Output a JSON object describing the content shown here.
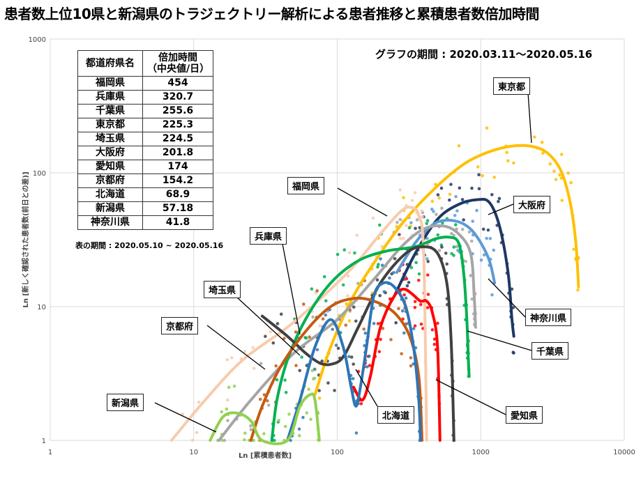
{
  "title": "患者数上位10県と新潟県のトラジェクトリー解析による患者推移と累積患者数倍加時間",
  "period_note": "グラフの期間 : 2020.03.11〜2020.05.16",
  "table": {
    "headers": [
      "都道府県名",
      "倍加時間\n（中央値/日）"
    ],
    "rows": [
      [
        "福岡県",
        "454"
      ],
      [
        "兵庫県",
        "320.7"
      ],
      [
        "千葉県",
        "255.6"
      ],
      [
        "東京都",
        "225.3"
      ],
      [
        "埼玉県",
        "224.5"
      ],
      [
        "大阪府",
        "201.8"
      ],
      [
        "愛知県",
        "174"
      ],
      [
        "京都府",
        "154.2"
      ],
      [
        "北海道",
        "68.9"
      ],
      [
        "新潟県",
        "57.18"
      ],
      [
        "神奈川県",
        "41.8"
      ]
    ],
    "caption": "表の期間 : 2020.05.10 ~ 2020.05.16"
  },
  "chart_data": {
    "type": "line",
    "xlabel": "Ln [累積患者数]",
    "ylabel": "Ln [新しく確認された患者数(前日との差)]",
    "x_scale": "log",
    "y_scale": "log",
    "xlim": [
      1,
      10000
    ],
    "ylim": [
      1,
      1000
    ],
    "x_ticks": [
      "1",
      "10",
      "100",
      "1000",
      "10000"
    ],
    "y_ticks": [
      "1",
      "10",
      "100",
      "1000"
    ],
    "grid": true,
    "series": [
      {
        "name": "東京都",
        "color": "#FFC000",
        "points": [
          [
            70,
            2.2
          ],
          [
            90,
            5
          ],
          [
            130,
            12
          ],
          [
            200,
            25
          ],
          [
            300,
            45
          ],
          [
            500,
            80
          ],
          [
            800,
            120
          ],
          [
            1300,
            150
          ],
          [
            2000,
            160
          ],
          [
            2800,
            145
          ],
          [
            3600,
            105
          ],
          [
            4200,
            60
          ],
          [
            4600,
            30
          ],
          [
            4800,
            14
          ]
        ]
      },
      {
        "name": "大阪府",
        "color": "#1F3864",
        "points": [
          [
            250,
            12
          ],
          [
            350,
            25
          ],
          [
            500,
            45
          ],
          [
            700,
            58
          ],
          [
            950,
            63
          ],
          [
            1150,
            60
          ],
          [
            1350,
            40
          ],
          [
            1550,
            18
          ],
          [
            1650,
            8
          ],
          [
            1700,
            6
          ]
        ]
      },
      {
        "name": "神奈川県",
        "color": "#5B9BD5",
        "points": [
          [
            260,
            18
          ],
          [
            350,
            30
          ],
          [
            450,
            40
          ],
          [
            550,
            44
          ],
          [
            700,
            43
          ],
          [
            850,
            38
          ],
          [
            1000,
            30
          ],
          [
            1150,
            22
          ],
          [
            1250,
            15
          ]
        ]
      },
      {
        "name": "千葉県",
        "color": "#A5A5A5",
        "points": [
          [
            15,
            1
          ],
          [
            25,
            2
          ],
          [
            50,
            4.5
          ],
          [
            100,
            8
          ],
          [
            180,
            16
          ],
          [
            280,
            28
          ],
          [
            400,
            38
          ],
          [
            550,
            40
          ],
          [
            700,
            35
          ],
          [
            850,
            25
          ],
          [
            900,
            12
          ],
          [
            920,
            7
          ]
        ]
      },
      {
        "name": "福岡県",
        "color": "#F8CBAD",
        "points": [
          [
            7,
            1
          ],
          [
            12,
            2
          ],
          [
            22,
            4
          ],
          [
            45,
            7
          ],
          [
            80,
            12
          ],
          [
            130,
            20
          ],
          [
            200,
            35
          ],
          [
            280,
            52
          ],
          [
            330,
            55
          ],
          [
            370,
            48
          ],
          [
            400,
            25
          ],
          [
            420,
            1
          ]
        ]
      },
      {
        "name": "兵庫県",
        "color": "#00B050",
        "points": [
          [
            35,
            1
          ],
          [
            38,
            2
          ],
          [
            45,
            4
          ],
          [
            60,
            8
          ],
          [
            90,
            15
          ],
          [
            140,
            22
          ],
          [
            220,
            26
          ],
          [
            350,
            28
          ],
          [
            480,
            32
          ],
          [
            600,
            33
          ],
          [
            700,
            30
          ],
          [
            760,
            18
          ],
          [
            800,
            8
          ],
          [
            820,
            4
          ],
          [
            830,
            3
          ]
        ]
      },
      {
        "name": "埼玉県",
        "color": "#404040",
        "points": [
          [
            30,
            8.5
          ],
          [
            45,
            6
          ],
          [
            60,
            4.5
          ],
          [
            75,
            3.8
          ],
          [
            90,
            3.7
          ],
          [
            110,
            4.2
          ],
          [
            140,
            7
          ],
          [
            200,
            15
          ],
          [
            300,
            25
          ],
          [
            400,
            28
          ],
          [
            500,
            25
          ],
          [
            580,
            15
          ],
          [
            620,
            6
          ],
          [
            640,
            2
          ],
          [
            650,
            1
          ]
        ]
      },
      {
        "name": "京都府",
        "color": "#C55A11",
        "points": [
          [
            25,
            1
          ],
          [
            30,
            1.8
          ],
          [
            40,
            3.5
          ],
          [
            60,
            6.5
          ],
          [
            90,
            10
          ],
          [
            130,
            11.5
          ],
          [
            180,
            11
          ],
          [
            250,
            9
          ],
          [
            320,
            6
          ],
          [
            370,
            3
          ],
          [
            390,
            1
          ]
        ]
      },
      {
        "name": "愛知県",
        "color": "#FF0000",
        "points": [
          [
            130,
            2.5
          ],
          [
            150,
            2
          ],
          [
            170,
            3
          ],
          [
            200,
            7
          ],
          [
            250,
            12
          ],
          [
            290,
            13.5
          ],
          [
            330,
            12.5
          ],
          [
            380,
            11
          ],
          [
            420,
            11
          ],
          [
            460,
            9
          ],
          [
            500,
            5
          ],
          [
            520,
            1
          ]
        ]
      },
      {
        "name": "北海道",
        "color": "#2E75B6",
        "points": [
          [
            45,
            1
          ],
          [
            55,
            2
          ],
          [
            70,
            5
          ],
          [
            90,
            8
          ],
          [
            110,
            5
          ],
          [
            125,
            2.5
          ],
          [
            135,
            1.8
          ],
          [
            145,
            2.5
          ],
          [
            160,
            5
          ],
          [
            180,
            12
          ],
          [
            210,
            15
          ],
          [
            250,
            14
          ],
          [
            300,
            10
          ],
          [
            340,
            5
          ],
          [
            370,
            2
          ],
          [
            380,
            1
          ]
        ]
      },
      {
        "name": "新潟県",
        "color": "#92D050",
        "points": [
          [
            13,
            1
          ],
          [
            16,
            1.5
          ],
          [
            20,
            1.6
          ],
          [
            25,
            1.4
          ],
          [
            30,
            1
          ],
          [
            45,
            1
          ],
          [
            55,
            1.8
          ],
          [
            65,
            2.2
          ],
          [
            70,
            2
          ],
          [
            75,
            1
          ]
        ]
      }
    ],
    "labels": [
      "東京都",
      "大阪府",
      "福岡県",
      "兵庫県",
      "埼玉県",
      "京都府",
      "新潟県",
      "神奈川県",
      "千葉県",
      "愛知県",
      "北海道"
    ]
  }
}
